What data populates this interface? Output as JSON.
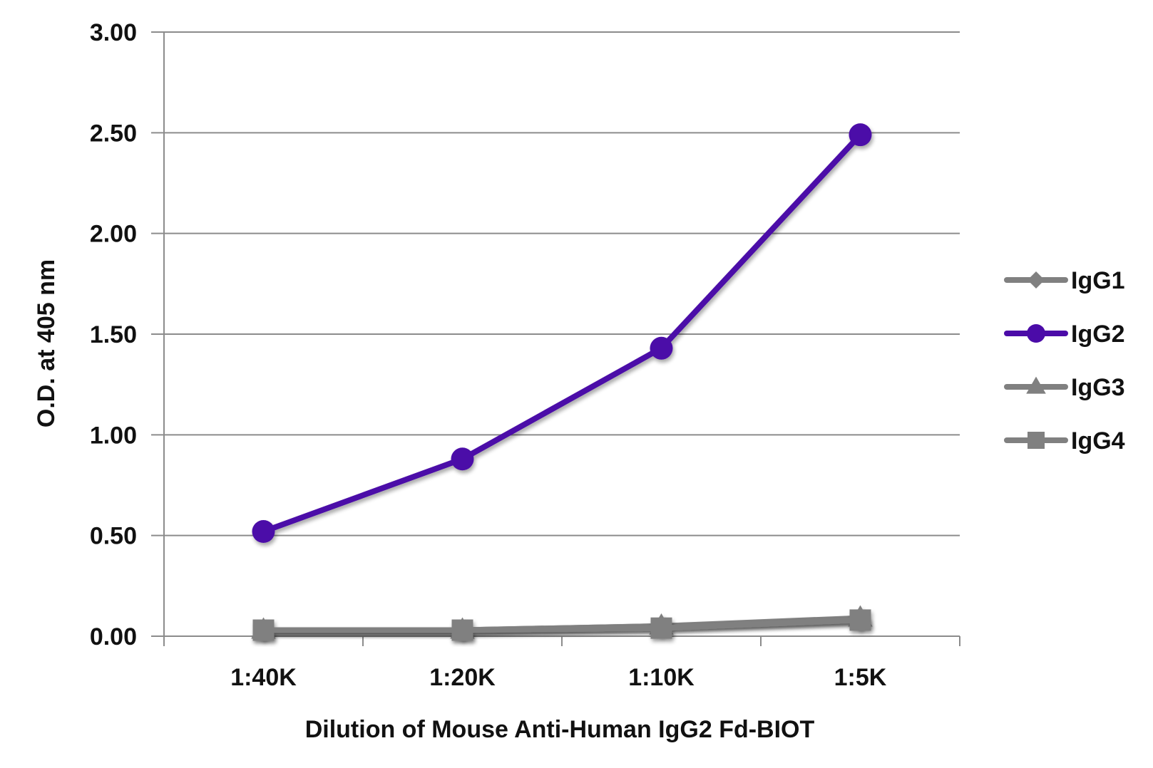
{
  "chart_data": {
    "type": "line",
    "title": "",
    "xlabel": "Dilution of Mouse Anti-Human IgG2 Fd-BIOT",
    "ylabel": "O.D. at 405 nm",
    "categories": [
      "1:40K",
      "1:20K",
      "1:10K",
      "1:5K"
    ],
    "ylim": [
      0,
      3
    ],
    "yticks": [
      "0.00",
      "0.50",
      "1.00",
      "1.50",
      "2.00",
      "2.50",
      "3.00"
    ],
    "grid": "horizontal",
    "legend_position": "right",
    "series": [
      {
        "name": "IgG1",
        "values": [
          0.03,
          0.03,
          0.05,
          0.08
        ],
        "color": "#808080",
        "marker": "diamond"
      },
      {
        "name": "IgG2",
        "values": [
          0.52,
          0.88,
          1.43,
          2.49
        ],
        "color": "#4B0BA8",
        "marker": "circle"
      },
      {
        "name": "IgG3",
        "values": [
          0.03,
          0.03,
          0.05,
          0.09
        ],
        "color": "#808080",
        "marker": "triangle"
      },
      {
        "name": "IgG4",
        "values": [
          0.03,
          0.03,
          0.04,
          0.08
        ],
        "color": "#808080",
        "marker": "square"
      }
    ]
  }
}
